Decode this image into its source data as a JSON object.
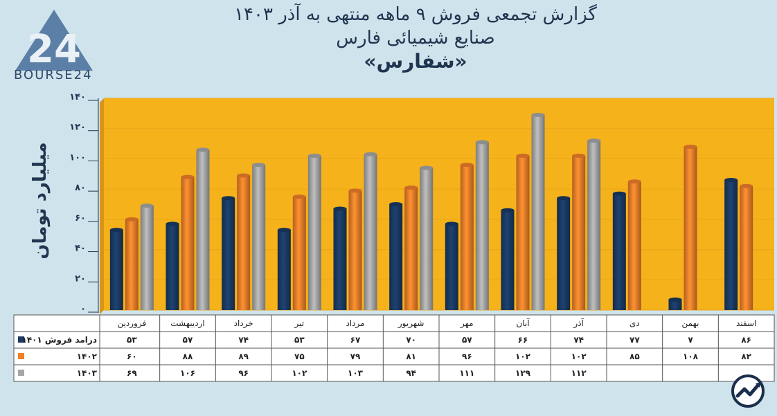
{
  "logo": {
    "text": "BOURSE24",
    "mark": "24"
  },
  "title": {
    "line1": "گزارش تجمعی فروش ۹ ماهه منتهی به آذر ۱۴۰۳",
    "line2": "صنایع شیمیائی فارس",
    "line3": "«شفارس»"
  },
  "chart_data": {
    "type": "bar",
    "title": "گزارش تجمعی فروش ۹ ماهه منتهی به آذر ۱۴۰۳ - صنایع شیمیائی فارس «شفارس»",
    "xlabel": "",
    "ylabel": "میلیارد تومان",
    "ylim": [
      0,
      140
    ],
    "yticks": [
      0,
      20,
      40,
      60,
      80,
      100,
      120,
      140
    ],
    "ytick_labels": [
      "۰",
      "۲۰",
      "۴۰",
      "۶۰",
      "۸۰",
      "۱۰۰",
      "۱۲۰",
      "۱۴۰"
    ],
    "categories": [
      "فروردین",
      "اردیبهشت",
      "خرداد",
      "تیر",
      "مرداد",
      "شهریور",
      "مهر",
      "آبان",
      "آذر",
      "دی",
      "بهمن",
      "اسفند"
    ],
    "series": [
      {
        "name": "درامد فروش ۱۴۰۱",
        "color": "#1a3a63",
        "values": [
          53,
          57,
          74,
          53,
          67,
          70,
          57,
          66,
          74,
          77,
          7,
          86
        ],
        "labels": [
          "۵۳",
          "۵۷",
          "۷۴",
          "۵۳",
          "۶۷",
          "۷۰",
          "۵۷",
          "۶۶",
          "۷۴",
          "۷۷",
          "۷",
          "۸۶"
        ]
      },
      {
        "name": "۱۴۰۲",
        "color": "#f07f2a",
        "values": [
          60,
          88,
          89,
          75,
          79,
          81,
          96,
          102,
          102,
          85,
          108,
          82
        ],
        "labels": [
          "۶۰",
          "۸۸",
          "۸۹",
          "۷۵",
          "۷۹",
          "۸۱",
          "۹۶",
          "۱۰۲",
          "۱۰۲",
          "۸۵",
          "۱۰۸",
          "۸۲"
        ]
      },
      {
        "name": "۱۴۰۳",
        "color": "#a6a6a6",
        "values": [
          69,
          106,
          96,
          102,
          103,
          94,
          111,
          129,
          112,
          null,
          null,
          null
        ],
        "labels": [
          "۶۹",
          "۱۰۶",
          "۹۶",
          "۱۰۲",
          "۱۰۳",
          "۹۴",
          "۱۱۱",
          "۱۲۹",
          "۱۱۲",
          "",
          "",
          ""
        ]
      }
    ],
    "plot_background": "#f6b21b",
    "grid": true
  }
}
